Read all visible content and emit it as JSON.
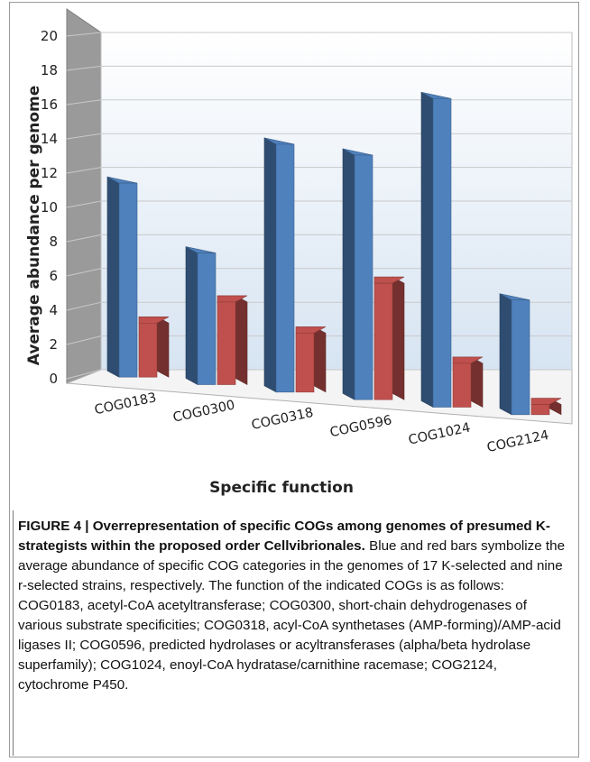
{
  "chart_data": {
    "type": "bar",
    "categories": [
      "COG0183",
      "COG0300",
      "COG0318",
      "COG0596",
      "COG1024",
      "COG2124"
    ],
    "series": [
      {
        "values": [
          11.5,
          7.8,
          14.7,
          14.5,
          18.3,
          6.8
        ],
        "color": "#4f81bd"
      },
      {
        "values": [
          3.2,
          4.9,
          3.5,
          6.9,
          2.6,
          0.6
        ],
        "color": "#c0504d"
      }
    ],
    "xlabel": "Specific function",
    "ylabel": "Average abundance per genome",
    "ylim": [
      0,
      20
    ],
    "yticks": [
      "0",
      "2",
      "4",
      "6",
      "8",
      "10",
      "12",
      "14",
      "16",
      "18",
      "20"
    ],
    "grid": true
  },
  "caption": {
    "title": "FIGURE 4 | Overrepresentation of specific COGs among genomes of presumed K-strategists within the proposed order Cellvibrionales.",
    "body": "Blue and red bars symbolize the average abundance of specific COG categories in the genomes of 17 K-selected and nine r-selected strains, respectively. The function of the indicated COGs is as follows: COG0183, acetyl-CoA acetyltransferase; COG0300, short-chain dehydrogenases of various substrate specificities; COG0318, acyl-CoA synthetases (AMP-forming)/AMP-acid ligases II; COG0596, predicted hydrolases or acyltransferases (alpha/beta hydrolase superfamily); COG1024, enoyl-CoA hydratase/carnithine racemase; COG2124, cytochrome P450."
  }
}
